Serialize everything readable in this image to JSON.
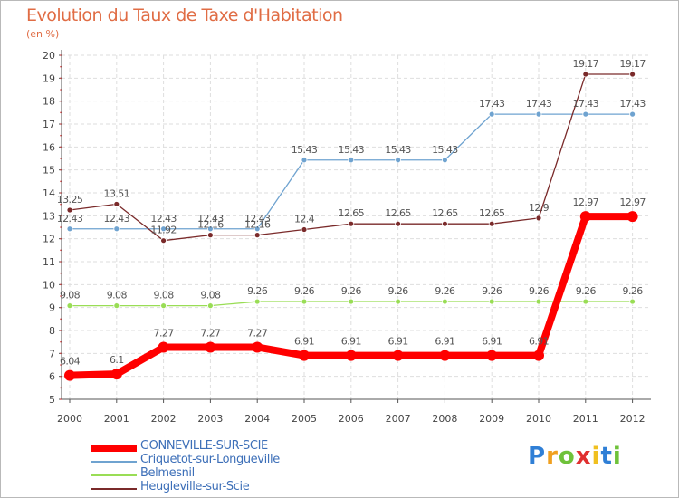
{
  "chart_data": {
    "type": "line",
    "title": "Evolution du Taux de Taxe d'Habitation",
    "ylabel": "(en %)",
    "categories": [
      "2000",
      "2001",
      "2002",
      "2003",
      "2004",
      "2005",
      "2006",
      "2007",
      "2008",
      "2009",
      "2010",
      "2011",
      "2012"
    ],
    "ylim": [
      5,
      20
    ],
    "yticks": [
      5,
      6,
      7,
      8,
      9,
      10,
      11,
      12,
      13,
      14,
      15,
      16,
      17,
      18,
      19,
      20
    ],
    "grid": true,
    "legend_position": "bottom-left",
    "series": [
      {
        "name": "GONNEVILLE-SUR-SCIE",
        "color": "#ff0000",
        "width": 8,
        "labels": [
          "6.04",
          "6.1",
          "7.27",
          "7.27",
          "7.27",
          "6.91",
          "6.91",
          "6.91",
          "6.91",
          "6.91",
          "6.91",
          "12.97",
          "12.97"
        ],
        "values": [
          6.04,
          6.1,
          7.27,
          7.27,
          7.27,
          6.91,
          6.91,
          6.91,
          6.91,
          6.91,
          6.91,
          12.97,
          12.97
        ]
      },
      {
        "name": "Criquetot-sur-Longueville",
        "color": "#6fa3d0",
        "width": 1.3,
        "labels": [
          "12.43",
          "12.43",
          "12.43",
          "12.43",
          "12.43",
          "15.43",
          "15.43",
          "15.43",
          "15.43",
          "17.43",
          "17.43",
          "17.43",
          "17.43"
        ],
        "values": [
          12.43,
          12.43,
          12.43,
          12.43,
          12.43,
          15.43,
          15.43,
          15.43,
          15.43,
          17.43,
          17.43,
          17.43,
          17.43
        ]
      },
      {
        "name": "Belmesnil",
        "color": "#99dd55",
        "width": 1.3,
        "labels": [
          "9.08",
          "9.08",
          "9.08",
          "9.08",
          "9.26",
          "9.26",
          "9.26",
          "9.26",
          "9.26",
          "9.26",
          "9.26",
          "9.26",
          "9.26"
        ],
        "values": [
          9.08,
          9.08,
          9.08,
          9.08,
          9.26,
          9.26,
          9.26,
          9.26,
          9.26,
          9.26,
          9.26,
          9.26,
          9.26
        ]
      },
      {
        "name": "Heugleville-sur-Scie",
        "color": "#7a2a2a",
        "width": 1.3,
        "labels": [
          "13.25",
          "13.51",
          "11.92",
          "12.16",
          "12.16",
          "12.4",
          "12.65",
          "12.65",
          "12.65",
          "12.65",
          "12.9",
          "19.17",
          "19.17"
        ],
        "values": [
          13.25,
          13.51,
          11.92,
          12.16,
          12.16,
          12.4,
          12.65,
          12.65,
          12.65,
          12.65,
          12.9,
          19.17,
          19.17
        ]
      }
    ]
  },
  "brand": {
    "letters": [
      "P",
      "r",
      "o",
      "x",
      "i",
      "t",
      "i"
    ],
    "colors": [
      "#2f7fd6",
      "#f0a020",
      "#6fc23a",
      "#e03030",
      "#f0c020",
      "#2f7fd6",
      "#6fc23a"
    ]
  }
}
